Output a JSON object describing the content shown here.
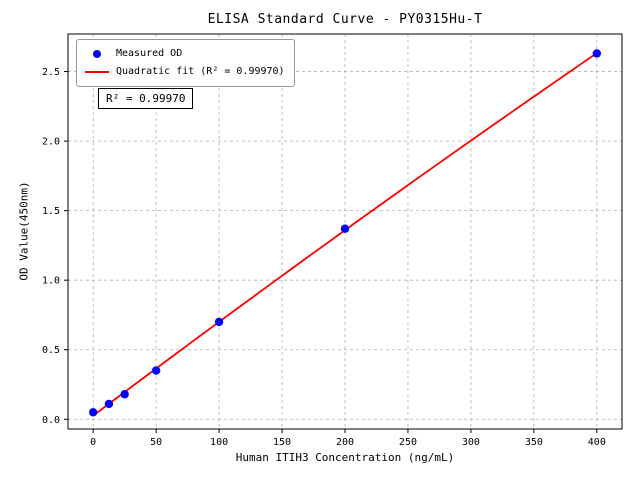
{
  "chart_data": {
    "type": "scatter",
    "title": "ELISA Standard Curve - PY0315Hu-T",
    "xlabel": "Human ITIH3 Concentration (ng/mL)",
    "ylabel": "OD Value(450nm)",
    "xlim": [
      -20,
      420
    ],
    "ylim": [
      -0.07,
      2.77
    ],
    "xticks": [
      0,
      50,
      100,
      150,
      200,
      250,
      300,
      350,
      400
    ],
    "yticks": [
      0,
      0.5,
      1,
      1.5,
      2,
      2.5
    ],
    "grid": true,
    "legend_position": "upper-left",
    "annotation": "R² = 0.99970",
    "series": [
      {
        "name": "Measured OD",
        "type": "scatter",
        "color": "#0000ff",
        "x": [
          0,
          12.5,
          25,
          50,
          100,
          200,
          400
        ],
        "y": [
          0.05,
          0.11,
          0.18,
          0.35,
          0.7,
          1.37,
          2.63
        ]
      },
      {
        "name": "Quadratic fit (R² = 0.99970)",
        "type": "line",
        "color": "#ff0000",
        "fit": "quadratic"
      }
    ]
  }
}
